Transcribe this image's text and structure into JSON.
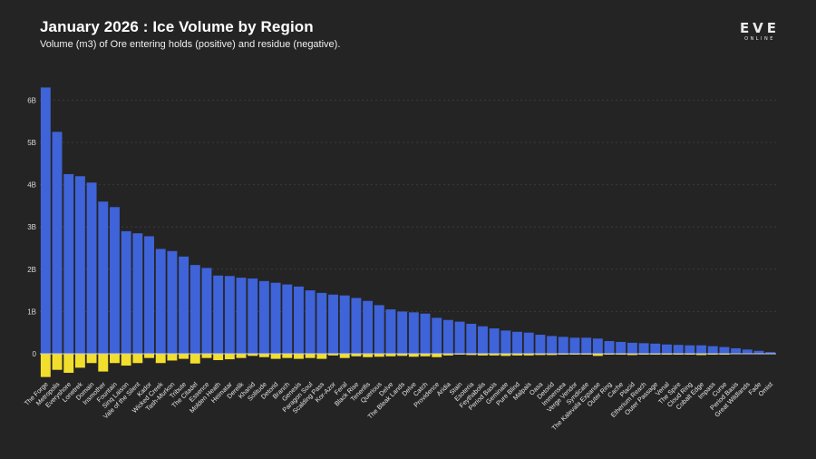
{
  "header": {
    "title": "January 2026 : Ice Volume by Region",
    "subtitle": "Volume (m3) of Ore entering holds (positive) and residue (negative)."
  },
  "logo": {
    "main": "EVE",
    "sub": "ONLINE",
    "icon": "eve-online-logo"
  },
  "colors": {
    "background": "#242424",
    "positive": "#3f63d8",
    "negative": "#f2de2c",
    "grid": "#3a3a3a",
    "zero_line": "#cfcfcf"
  },
  "chart_data": {
    "type": "bar",
    "title": "January 2026 : Ice Volume by Region",
    "subtitle": "Volume (m3) of Ore entering holds (positive) and residue (negative).",
    "xlabel": "",
    "ylabel": "",
    "ylim": [
      -0.6,
      6.5
    ],
    "yticks": [
      0,
      1,
      2,
      3,
      4,
      5,
      6
    ],
    "ytick_labels": [
      "0",
      "1B",
      "2B",
      "3B",
      "4B",
      "5B",
      "6B"
    ],
    "grid": true,
    "legend": "none",
    "categories": [
      "The Forge",
      "Metropolis",
      "Everyshore",
      "Lonetrek",
      "Domain",
      "Insmother",
      "Fountain",
      "Sinq Laison",
      "Vale of the Silent",
      "Kador",
      "Wicked Creek",
      "Tash-Murkon",
      "Tribute",
      "The Citadel",
      "Essence",
      "Molden Heath",
      "Heimatar",
      "Derelik",
      "Khanid",
      "Solitude",
      "Detorid",
      "Branch",
      "Genesis",
      "Paragon Soul",
      "Scalding Pass",
      "Kor-Azor",
      "Feral",
      "Black Rise",
      "Tenerifis",
      "Querious",
      "Delve",
      "The Bleak Lands",
      "Delve",
      "Catch",
      "Providence",
      "Aridia",
      "Stain",
      "Esoteria",
      "Feythabolis",
      "Period Basis",
      "Geminate",
      "Pure Blind",
      "Malpais",
      "Oasa",
      "Detorid",
      "Immensea",
      "Verge Vendor",
      "Syndicate",
      "The Kalevala Expanse",
      "Outer Ring",
      "Cache",
      "Placid",
      "Etherium Reach",
      "Outer Passage",
      "Venal",
      "The Spire",
      "Cloud Ring",
      "Cobalt Edge",
      "Impass",
      "Curse",
      "Period Basis",
      "Great Wildlands",
      "Fade",
      "Omist"
    ],
    "series": [
      {
        "values": [
          6.3,
          5.25,
          4.25,
          4.2,
          4.05,
          3.6,
          3.47,
          2.9,
          2.85,
          2.78,
          2.48,
          2.43,
          2.3,
          2.1,
          2.03,
          1.85,
          1.84,
          1.8,
          1.78,
          1.72,
          1.68,
          1.64,
          1.59,
          1.5,
          1.44,
          1.4,
          1.38,
          1.32,
          1.25,
          1.15,
          1.05,
          1.0,
          0.98,
          0.95,
          0.85,
          0.8,
          0.76,
          0.71,
          0.65,
          0.6,
          0.55,
          0.52,
          0.5,
          0.45,
          0.42,
          0.4,
          0.38,
          0.38,
          0.36,
          0.3,
          0.28,
          0.26,
          0.25,
          0.24,
          0.22,
          0.21,
          0.2,
          0.2,
          0.18,
          0.16,
          0.13,
          0.1,
          0.07,
          0.04
        ]
      },
      {
        "values": [
          -0.55,
          -0.38,
          -0.45,
          -0.33,
          -0.22,
          -0.42,
          -0.22,
          -0.28,
          -0.22,
          -0.1,
          -0.22,
          -0.16,
          -0.12,
          -0.23,
          -0.1,
          -0.15,
          -0.13,
          -0.1,
          -0.05,
          -0.08,
          -0.12,
          -0.1,
          -0.12,
          -0.1,
          -0.12,
          -0.04,
          -0.1,
          -0.06,
          -0.08,
          -0.07,
          -0.06,
          -0.05,
          -0.07,
          -0.06,
          -0.08,
          -0.04,
          -0.02,
          -0.03,
          -0.04,
          -0.04,
          -0.05,
          -0.04,
          -0.04,
          -0.03,
          -0.03,
          -0.02,
          -0.02,
          -0.02,
          -0.05,
          -0.02,
          -0.02,
          -0.03,
          -0.02,
          -0.02,
          -0.02,
          -0.02,
          -0.02,
          -0.03,
          -0.02,
          -0.02,
          -0.01,
          -0.01,
          -0.01,
          -0.01
        ]
      }
    ]
  }
}
